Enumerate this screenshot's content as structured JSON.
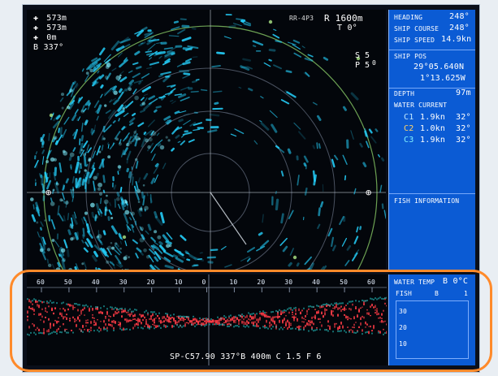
{
  "top_left": {
    "r1": "573m",
    "r2": "573m",
    "r3": "0m",
    "r4": "B 337°"
  },
  "top_right": {
    "range_small": "RR-4P3",
    "range": "R 1600m",
    "tilt": "T 0°",
    "s_val": "S",
    "s_val2": "5",
    "p_val": "P",
    "p_val2": "5",
    "mid_num": "0"
  },
  "side_panel": {
    "heading_label": "HEADING",
    "heading_value": "248°",
    "ship_course_label": "SHIP COURSE",
    "ship_course_value": "248°",
    "ship_speed_label": "SHIP SPEED",
    "ship_speed_value": "14.9kn",
    "ship_position_label": "SHIP POS",
    "lat": "29°05.640N",
    "lon": "1°13.625W",
    "depth_label": "DEPTH",
    "depth_value": "97m",
    "current_label": "WATER CURRENT",
    "current_rows": [
      {
        "id": "C1",
        "speed": "1.9kn",
        "dir": "32°"
      },
      {
        "id": "C2",
        "speed": "1.0kn",
        "dir": "32°"
      },
      {
        "id": "C3",
        "speed": "1.9kn",
        "dir": "32°"
      }
    ],
    "fish_label": "FISH INFORMATION"
  },
  "bottom_panel": {
    "header": "WATER TEMP",
    "value": "B 0°C",
    "sub_left": "FISH",
    "sub_mid": "B",
    "sub_right": "1",
    "axis_labels": [
      "30",
      "20",
      "10"
    ]
  },
  "bottom_strip": {
    "tick_labels": [
      "60",
      "50",
      "40",
      "30",
      "20",
      "10",
      "0",
      "10",
      "20",
      "30",
      "40",
      "50",
      "60"
    ],
    "status": "SP-C57.90 337°B 400m C 1.5 F 6"
  },
  "colors": {
    "sonar_bg": "#03060b",
    "sonar_grid": "#cfd8e3",
    "echo_cyan": "#25d3ff",
    "range_ring_green": "#78b35b",
    "panel_blue": "#0b5bd4",
    "strip_red": "#ff3c46",
    "strip_teal": "#22c7c7",
    "highlight_orange": "#ff8a2a"
  }
}
